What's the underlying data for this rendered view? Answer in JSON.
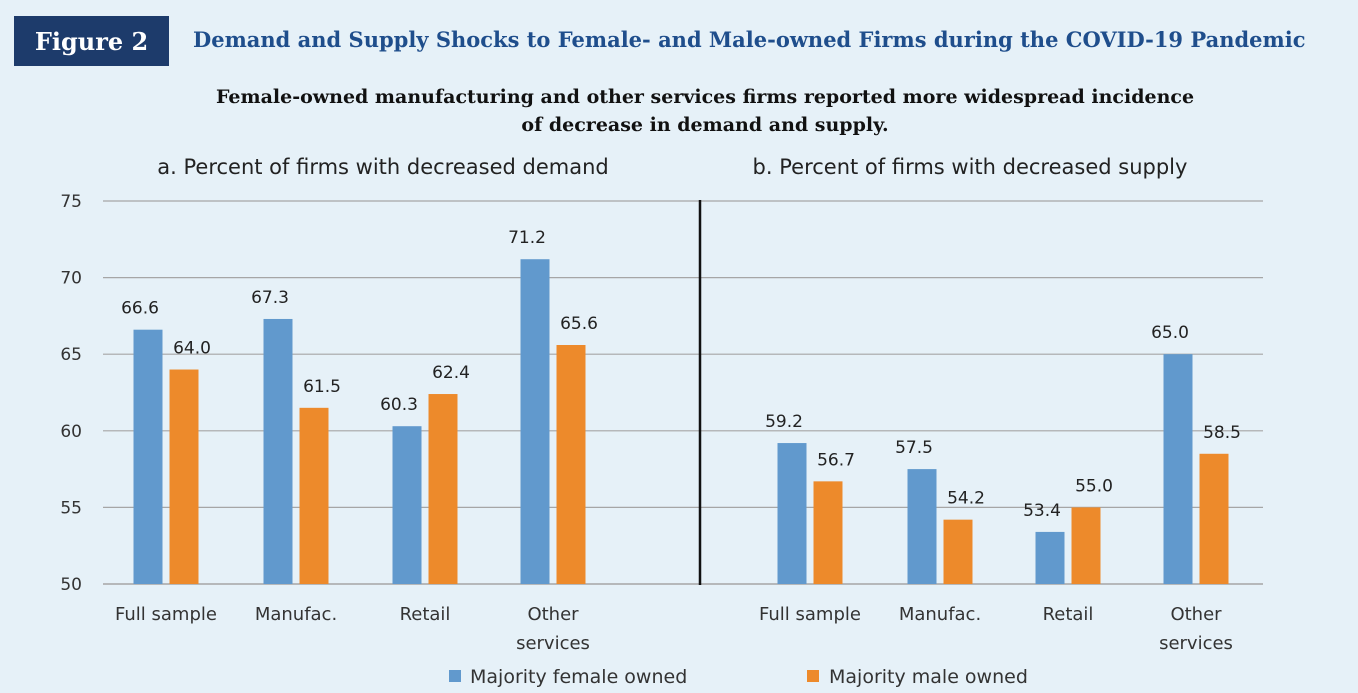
{
  "figure": {
    "badge": "Figure 2",
    "title": "Demand and Supply Shocks to Female- and Male-owned Firms during the COVID-19 Pandemic",
    "subtitle_line1": "Female-owned manufacturing and other services firms reported more widespread incidence",
    "subtitle_line2": "of decrease in demand and supply."
  },
  "colors": {
    "female": "#6199cd",
    "male": "#ed8a2b",
    "grid": "#a6a6a6",
    "badge_bg": "#1d3b6b",
    "title": "#1f4e8c"
  },
  "chart_data": [
    {
      "type": "bar",
      "title": "a. Percent of firms with decreased demand",
      "categories": [
        "Full sample",
        "Manufac.",
        "Retail",
        "Other services"
      ],
      "category_lines": [
        [
          "Full sample"
        ],
        [
          "Manufac."
        ],
        [
          "Retail"
        ],
        [
          "Other",
          "services"
        ]
      ],
      "series": [
        {
          "name": "Majority female owned",
          "values": [
            66.6,
            67.3,
            60.3,
            71.2
          ],
          "labels": [
            "66.6",
            "67.3",
            "60.3",
            "71.2"
          ]
        },
        {
          "name": "Majority male owned",
          "values": [
            64.0,
            61.5,
            62.4,
            65.6
          ],
          "labels": [
            "64.0",
            "61.5",
            "62.4",
            "65.6"
          ]
        }
      ],
      "ylim": [
        50,
        75
      ],
      "yticks": [
        "50",
        "55",
        "60",
        "65",
        "70",
        "75"
      ],
      "grid": true
    },
    {
      "type": "bar",
      "title": "b. Percent of firms with decreased supply",
      "categories": [
        "Full sample",
        "Manufac.",
        "Retail",
        "Other services"
      ],
      "category_lines": [
        [
          "Full sample"
        ],
        [
          "Manufac."
        ],
        [
          "Retail"
        ],
        [
          "Other",
          "services"
        ]
      ],
      "series": [
        {
          "name": "Majority female owned",
          "values": [
            59.2,
            57.5,
            53.4,
            65.0
          ],
          "labels": [
            "59.2",
            "57.5",
            "53.4",
            "65.0"
          ]
        },
        {
          "name": "Majority male owned",
          "values": [
            56.7,
            54.2,
            55.0,
            58.5
          ],
          "labels": [
            "56.7",
            "54.2",
            "55.0",
            "58.5"
          ]
        }
      ],
      "ylim": [
        50,
        75
      ],
      "grid": true
    }
  ],
  "legend": {
    "position": "bottom",
    "items": [
      "Majority female owned",
      "Majority male owned"
    ]
  }
}
